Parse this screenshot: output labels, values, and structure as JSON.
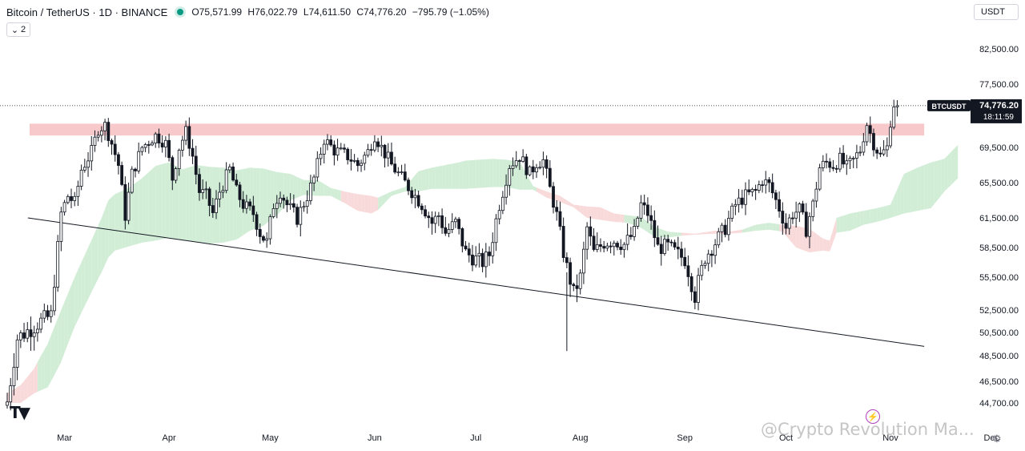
{
  "header": {
    "symbol": "Bitcoin / TetherUS · 1D · BINANCE",
    "open_key": "O",
    "open": "75,571.99",
    "high_key": "H",
    "high": "76,022.79",
    "low_key": "L",
    "low": "74,611.50",
    "close_key": "C",
    "close": "74,776.20",
    "change": "−795.79 (−1.05%)"
  },
  "collapse": {
    "count": "2"
  },
  "currency": "USDT",
  "price_tag": {
    "ticker": "BTCUSDT",
    "price": "74,776.20",
    "countdown": "18:11:59"
  },
  "watermark": "@Crypto Revolution Ma...",
  "icons": {
    "tv_logo": "tradingview-logo-icon",
    "lightning": "lightning-icon",
    "settings": "gear-icon"
  },
  "chart_data": {
    "type": "candlestick",
    "x_tick_labels": [
      "Mar",
      "Apr",
      "May",
      "Jun",
      "Jul",
      "Aug",
      "Sep",
      "Oct",
      "Nov",
      "Dec"
    ],
    "x_tick_days": [
      17,
      48,
      78,
      109,
      139,
      170,
      201,
      231,
      262,
      292
    ],
    "y_tick_labels": [
      "82,500.00",
      "77,500.00",
      "69,500.00",
      "65,500.00",
      "61,500.00",
      "58,500.00",
      "55,500.00",
      "52,500.00",
      "50,500.00",
      "48,500.00",
      "46,500.00",
      "44,700.00"
    ],
    "y_ticks": [
      82500,
      77500,
      69500,
      65500,
      61500,
      58500,
      55500,
      52500,
      50500,
      48500,
      46500,
      44700
    ],
    "key_points": [
      [
        0,
        44800
      ],
      [
        3,
        50000
      ],
      [
        10,
        51500
      ],
      [
        13,
        52000
      ],
      [
        15,
        58500
      ],
      [
        16,
        62000
      ],
      [
        18,
        64000
      ],
      [
        20,
        63200
      ],
      [
        22,
        67000
      ],
      [
        25,
        69000
      ],
      [
        27,
        71800
      ],
      [
        29,
        72300
      ],
      [
        31,
        70000
      ],
      [
        33,
        67500
      ],
      [
        35,
        61800
      ],
      [
        37,
        66500
      ],
      [
        40,
        69500
      ],
      [
        44,
        71000
      ],
      [
        47,
        70000
      ],
      [
        49,
        66000
      ],
      [
        51,
        69500
      ],
      [
        53,
        71500
      ],
      [
        55,
        68500
      ],
      [
        57,
        64500
      ],
      [
        59,
        64000
      ],
      [
        61,
        62000
      ],
      [
        63,
        64500
      ],
      [
        66,
        67000
      ],
      [
        68,
        64500
      ],
      [
        70,
        63000
      ],
      [
        73,
        62000
      ],
      [
        75,
        60000
      ],
      [
        77,
        59000
      ],
      [
        79,
        63000
      ],
      [
        81,
        64500
      ],
      [
        83,
        63000
      ],
      [
        86,
        61500
      ],
      [
        89,
        64000
      ],
      [
        91,
        66000
      ],
      [
        94,
        70500
      ],
      [
        97,
        69200
      ],
      [
        101,
        68500
      ],
      [
        104,
        67500
      ],
      [
        107,
        69000
      ],
      [
        109,
        71000
      ],
      [
        111,
        69500
      ],
      [
        114,
        67500
      ],
      [
        117,
        66000
      ],
      [
        120,
        64500
      ],
      [
        123,
        63000
      ],
      [
        126,
        61000
      ],
      [
        128,
        61800
      ],
      [
        130,
        60000
      ],
      [
        133,
        61000
      ],
      [
        136,
        58000
      ],
      [
        138,
        57500
      ],
      [
        141,
        57000
      ],
      [
        143,
        57800
      ],
      [
        146,
        63000
      ],
      [
        149,
        67500
      ],
      [
        152,
        68500
      ],
      [
        155,
        66500
      ],
      [
        157,
        67800
      ],
      [
        159,
        68000
      ],
      [
        161,
        64800
      ],
      [
        163,
        61800
      ],
      [
        165,
        58000
      ],
      [
        166,
        56500
      ],
      [
        168,
        54000
      ],
      [
        170,
        55500
      ],
      [
        172,
        60500
      ],
      [
        174,
        58000
      ],
      [
        177,
        59000
      ],
      [
        180,
        59200
      ],
      [
        183,
        58800
      ],
      [
        186,
        60000
      ],
      [
        188,
        63000
      ],
      [
        190,
        62000
      ],
      [
        193,
        58500
      ],
      [
        196,
        58600
      ],
      [
        199,
        57800
      ],
      [
        201,
        57300
      ],
      [
        204,
        53800
      ],
      [
        207,
        57500
      ],
      [
        210,
        59000
      ],
      [
        213,
        60500
      ],
      [
        216,
        63000
      ],
      [
        219,
        64000
      ],
      [
        222,
        64500
      ],
      [
        224,
        65800
      ],
      [
        226,
        65200
      ],
      [
        229,
        62600
      ],
      [
        231,
        60600
      ],
      [
        233,
        62000
      ],
      [
        235,
        62400
      ],
      [
        237,
        60400
      ],
      [
        239,
        63000
      ],
      [
        241,
        67200
      ],
      [
        243,
        67800
      ],
      [
        245,
        67500
      ],
      [
        247,
        68100
      ],
      [
        249,
        67200
      ],
      [
        251,
        68000
      ],
      [
        253,
        69200
      ],
      [
        255,
        72500
      ],
      [
        257,
        70000
      ],
      [
        259,
        68500
      ],
      [
        261,
        69500
      ],
      [
        262,
        72800
      ],
      [
        263,
        75000
      ],
      [
        264,
        74776
      ]
    ],
    "cloud": [
      [
        0,
        45500,
        44700
      ],
      [
        4,
        46200,
        44700
      ],
      [
        8,
        47500,
        45500
      ],
      [
        12,
        49500,
        46000
      ],
      [
        16,
        52500,
        48000
      ],
      [
        20,
        55500,
        51000
      ],
      [
        24,
        58500,
        53500
      ],
      [
        28,
        61500,
        56000
      ],
      [
        30,
        63500,
        57500
      ],
      [
        32,
        64200,
        58200
      ],
      [
        36,
        64900,
        58600
      ],
      [
        40,
        66000,
        59000
      ],
      [
        44,
        67400,
        59200
      ],
      [
        48,
        67800,
        59500
      ],
      [
        52,
        67000,
        59200
      ],
      [
        56,
        67500,
        59100
      ],
      [
        60,
        67300,
        58900
      ],
      [
        64,
        67200,
        59000
      ],
      [
        68,
        66900,
        59300
      ],
      [
        72,
        67200,
        60200
      ],
      [
        76,
        67100,
        60700
      ],
      [
        80,
        66700,
        61800
      ],
      [
        84,
        66500,
        63500
      ],
      [
        88,
        65800,
        64100
      ],
      [
        92,
        65800,
        64000
      ],
      [
        96,
        64900,
        64000
      ],
      [
        100,
        64500,
        63200
      ],
      [
        104,
        64200,
        62300
      ],
      [
        108,
        64000,
        62000
      ],
      [
        110,
        63800,
        62400
      ],
      [
        114,
        64500,
        64000
      ],
      [
        118,
        65000,
        64500
      ],
      [
        122,
        66800,
        64500
      ],
      [
        126,
        67200,
        64800
      ],
      [
        130,
        67500,
        64800
      ],
      [
        134,
        67800,
        64800
      ],
      [
        136,
        68000,
        64800
      ],
      [
        140,
        68100,
        64900
      ],
      [
        144,
        68200,
        65000
      ],
      [
        148,
        68100,
        65000
      ],
      [
        152,
        67900,
        64700
      ],
      [
        156,
        65100,
        64700
      ],
      [
        160,
        64500,
        63800
      ],
      [
        164,
        64000,
        63300
      ],
      [
        168,
        63000,
        62700
      ],
      [
        172,
        62800,
        61500
      ],
      [
        176,
        62700,
        61300
      ],
      [
        180,
        62000,
        61100
      ],
      [
        184,
        61800,
        61000
      ],
      [
        188,
        61600,
        60500
      ],
      [
        192,
        60600,
        59600
      ],
      [
        196,
        60100,
        59500
      ],
      [
        200,
        60000,
        59700
      ],
      [
        204,
        59900,
        59800
      ],
      [
        210,
        60200,
        59900
      ],
      [
        214,
        60100,
        59900
      ],
      [
        218,
        60300,
        60000
      ],
      [
        222,
        60800,
        60200
      ],
      [
        226,
        61000,
        60300
      ],
      [
        230,
        60800,
        60100
      ],
      [
        234,
        60700,
        58500
      ],
      [
        238,
        60400,
        58000
      ],
      [
        242,
        59400,
        58200
      ],
      [
        244,
        59200,
        58100
      ],
      [
        246,
        61500,
        60000
      ],
      [
        250,
        62000,
        60200
      ],
      [
        254,
        62300,
        60800
      ],
      [
        258,
        62600,
        61100
      ],
      [
        262,
        63000,
        61500
      ],
      [
        266,
        66500,
        62000
      ],
      [
        270,
        67200,
        62300
      ],
      [
        274,
        67800,
        62600
      ],
      [
        278,
        68200,
        64500
      ],
      [
        282,
        69800,
        66000
      ]
    ],
    "cloud_red_segments": [
      [
        0,
        9
      ],
      [
        99,
        110
      ],
      [
        157,
        183
      ],
      [
        200,
        218
      ],
      [
        229,
        246
      ]
    ],
    "resistance_zone": {
      "from_day": 0,
      "to_day": 272,
      "low": 71000,
      "high": 72500
    },
    "trendline": {
      "from": [
        -1,
        61500
      ],
      "to": [
        272,
        49300
      ]
    },
    "last_price": 74776.2,
    "up_color": "#131722",
    "down_color": "#131722",
    "cloud_green": "#d1edd6",
    "cloud_red": "#f9dada",
    "zone_color": "#f8c9cb",
    "trendline_color": "#131722",
    "price_tag_color": "#131722"
  }
}
